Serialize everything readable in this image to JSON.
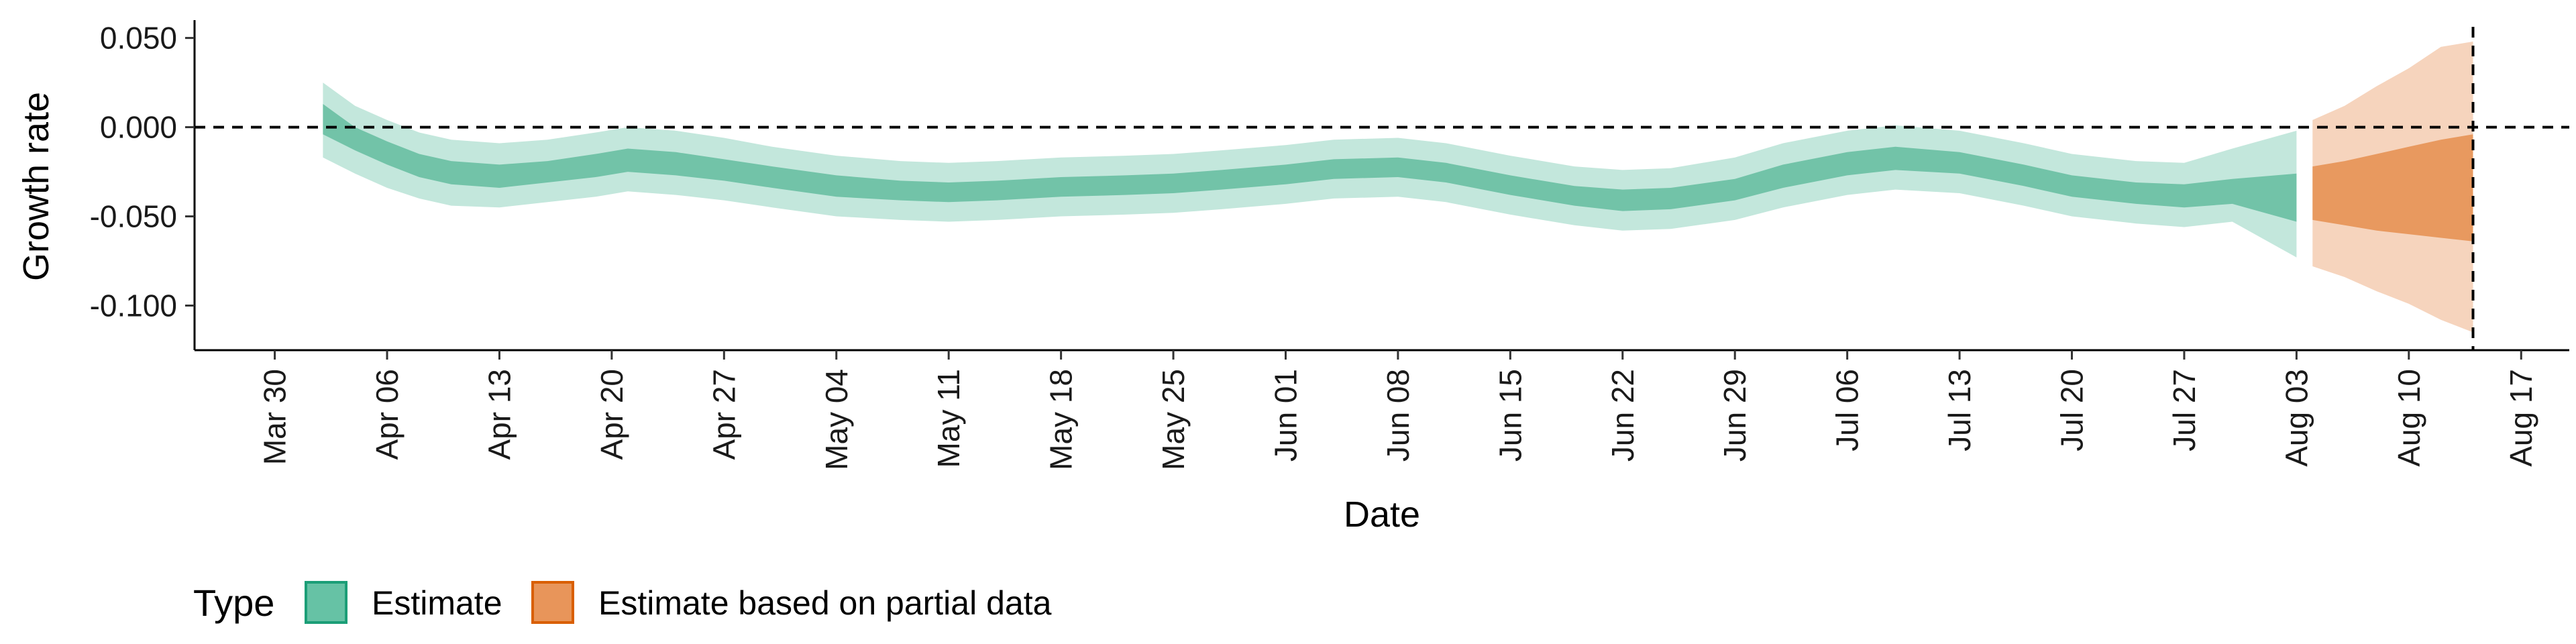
{
  "chart_data": {
    "type": "area",
    "xlabel": "Date",
    "ylabel": "Growth rate",
    "ylim": [
      -0.125,
      0.06
    ],
    "xlim": [
      "2020-03-25",
      "2020-08-20"
    ],
    "y_ticks": [
      {
        "value": 0.05,
        "label": "0.050"
      },
      {
        "value": 0.0,
        "label": "0.000"
      },
      {
        "value": -0.05,
        "label": "-0.050"
      },
      {
        "value": -0.1,
        "label": "-0.100"
      }
    ],
    "x_ticks": [
      {
        "date": "2020-03-30",
        "label": "Mar 30"
      },
      {
        "date": "2020-04-06",
        "label": "Apr 06"
      },
      {
        "date": "2020-04-13",
        "label": "Apr 13"
      },
      {
        "date": "2020-04-20",
        "label": "Apr 20"
      },
      {
        "date": "2020-04-27",
        "label": "Apr 27"
      },
      {
        "date": "2020-05-04",
        "label": "May 04"
      },
      {
        "date": "2020-05-11",
        "label": "May 11"
      },
      {
        "date": "2020-05-18",
        "label": "May 18"
      },
      {
        "date": "2020-05-25",
        "label": "May 25"
      },
      {
        "date": "2020-06-01",
        "label": "Jun 01"
      },
      {
        "date": "2020-06-08",
        "label": "Jun 08"
      },
      {
        "date": "2020-06-15",
        "label": "Jun 15"
      },
      {
        "date": "2020-06-22",
        "label": "Jun 22"
      },
      {
        "date": "2020-06-29",
        "label": "Jun 29"
      },
      {
        "date": "2020-07-06",
        "label": "Jul 06"
      },
      {
        "date": "2020-07-13",
        "label": "Jul 13"
      },
      {
        "date": "2020-07-20",
        "label": "Jul 20"
      },
      {
        "date": "2020-07-27",
        "label": "Jul 27"
      },
      {
        "date": "2020-08-03",
        "label": "Aug 03"
      },
      {
        "date": "2020-08-10",
        "label": "Aug 10"
      },
      {
        "date": "2020-08-17",
        "label": "Aug 17"
      }
    ],
    "hline": {
      "y": 0.0,
      "style": "dashed"
    },
    "vline": {
      "date": "2020-08-14",
      "style": "dashed"
    },
    "legend": {
      "title": "Type",
      "position": "bottom-left",
      "entries": [
        {
          "label": "Estimate",
          "fill": "#66c2a5",
          "border": "#1b9e77"
        },
        {
          "label": "Estimate based on partial data",
          "fill": "#e8955a",
          "border": "#d95f02"
        }
      ]
    },
    "series": [
      {
        "name": "Estimate",
        "color_outer": "#c3e7dc",
        "color_inner": "#72c3a8",
        "points": [
          {
            "date": "2020-04-02",
            "lo90": -0.017,
            "lo50": -0.004,
            "hi50": 0.013,
            "hi90": 0.025
          },
          {
            "date": "2020-04-04",
            "lo90": -0.026,
            "lo50": -0.013,
            "hi50": 0.0,
            "hi90": 0.012
          },
          {
            "date": "2020-04-06",
            "lo90": -0.034,
            "lo50": -0.021,
            "hi50": -0.008,
            "hi90": 0.004
          },
          {
            "date": "2020-04-08",
            "lo90": -0.04,
            "lo50": -0.028,
            "hi50": -0.015,
            "hi90": -0.003
          },
          {
            "date": "2020-04-10",
            "lo90": -0.044,
            "lo50": -0.032,
            "hi50": -0.019,
            "hi90": -0.007
          },
          {
            "date": "2020-04-13",
            "lo90": -0.045,
            "lo50": -0.034,
            "hi50": -0.021,
            "hi90": -0.009
          },
          {
            "date": "2020-04-16",
            "lo90": -0.042,
            "lo50": -0.031,
            "hi50": -0.019,
            "hi90": -0.007
          },
          {
            "date": "2020-04-19",
            "lo90": -0.039,
            "lo50": -0.028,
            "hi50": -0.015,
            "hi90": -0.003
          },
          {
            "date": "2020-04-21",
            "lo90": -0.036,
            "lo50": -0.025,
            "hi50": -0.012,
            "hi90": 0.0
          },
          {
            "date": "2020-04-24",
            "lo90": -0.038,
            "lo50": -0.027,
            "hi50": -0.014,
            "hi90": -0.002
          },
          {
            "date": "2020-04-27",
            "lo90": -0.041,
            "lo50": -0.03,
            "hi50": -0.018,
            "hi90": -0.006
          },
          {
            "date": "2020-04-30",
            "lo90": -0.045,
            "lo50": -0.034,
            "hi50": -0.022,
            "hi90": -0.011
          },
          {
            "date": "2020-05-04",
            "lo90": -0.05,
            "lo50": -0.039,
            "hi50": -0.027,
            "hi90": -0.016
          },
          {
            "date": "2020-05-08",
            "lo90": -0.052,
            "lo50": -0.041,
            "hi50": -0.03,
            "hi90": -0.019
          },
          {
            "date": "2020-05-11",
            "lo90": -0.053,
            "lo50": -0.042,
            "hi50": -0.031,
            "hi90": -0.02
          },
          {
            "date": "2020-05-14",
            "lo90": -0.052,
            "lo50": -0.041,
            "hi50": -0.03,
            "hi90": -0.019
          },
          {
            "date": "2020-05-18",
            "lo90": -0.05,
            "lo50": -0.039,
            "hi50": -0.028,
            "hi90": -0.017
          },
          {
            "date": "2020-05-22",
            "lo90": -0.049,
            "lo50": -0.038,
            "hi50": -0.027,
            "hi90": -0.016
          },
          {
            "date": "2020-05-25",
            "lo90": -0.048,
            "lo50": -0.037,
            "hi50": -0.026,
            "hi90": -0.015
          },
          {
            "date": "2020-05-28",
            "lo90": -0.046,
            "lo50": -0.035,
            "hi50": -0.024,
            "hi90": -0.013
          },
          {
            "date": "2020-06-01",
            "lo90": -0.043,
            "lo50": -0.032,
            "hi50": -0.021,
            "hi90": -0.01
          },
          {
            "date": "2020-06-04",
            "lo90": -0.04,
            "lo50": -0.029,
            "hi50": -0.018,
            "hi90": -0.007
          },
          {
            "date": "2020-06-08",
            "lo90": -0.039,
            "lo50": -0.028,
            "hi50": -0.017,
            "hi90": -0.006
          },
          {
            "date": "2020-06-11",
            "lo90": -0.042,
            "lo50": -0.031,
            "hi50": -0.02,
            "hi90": -0.009
          },
          {
            "date": "2020-06-15",
            "lo90": -0.049,
            "lo50": -0.038,
            "hi50": -0.027,
            "hi90": -0.016
          },
          {
            "date": "2020-06-19",
            "lo90": -0.055,
            "lo50": -0.044,
            "hi50": -0.033,
            "hi90": -0.022
          },
          {
            "date": "2020-06-22",
            "lo90": -0.058,
            "lo50": -0.047,
            "hi50": -0.035,
            "hi90": -0.024
          },
          {
            "date": "2020-06-25",
            "lo90": -0.057,
            "lo50": -0.046,
            "hi50": -0.034,
            "hi90": -0.023
          },
          {
            "date": "2020-06-29",
            "lo90": -0.052,
            "lo50": -0.041,
            "hi50": -0.029,
            "hi90": -0.017
          },
          {
            "date": "2020-07-02",
            "lo90": -0.045,
            "lo50": -0.034,
            "hi50": -0.021,
            "hi90": -0.009
          },
          {
            "date": "2020-07-06",
            "lo90": -0.038,
            "lo50": -0.027,
            "hi50": -0.014,
            "hi90": -0.002
          },
          {
            "date": "2020-07-09",
            "lo90": -0.035,
            "lo50": -0.024,
            "hi50": -0.011,
            "hi90": 0.001
          },
          {
            "date": "2020-07-13",
            "lo90": -0.037,
            "lo50": -0.026,
            "hi50": -0.014,
            "hi90": -0.002
          },
          {
            "date": "2020-07-17",
            "lo90": -0.044,
            "lo50": -0.033,
            "hi50": -0.021,
            "hi90": -0.009
          },
          {
            "date": "2020-07-20",
            "lo90": -0.05,
            "lo50": -0.039,
            "hi50": -0.027,
            "hi90": -0.015
          },
          {
            "date": "2020-07-24",
            "lo90": -0.054,
            "lo50": -0.043,
            "hi50": -0.031,
            "hi90": -0.019
          },
          {
            "date": "2020-07-27",
            "lo90": -0.056,
            "lo50": -0.045,
            "hi50": -0.032,
            "hi90": -0.02
          },
          {
            "date": "2020-07-30",
            "lo90": -0.053,
            "lo50": -0.043,
            "hi50": -0.029,
            "hi90": -0.012
          },
          {
            "date": "2020-08-03",
            "lo90": -0.073,
            "lo50": -0.053,
            "hi50": -0.026,
            "hi90": -0.002
          }
        ]
      },
      {
        "name": "Estimate based on partial data",
        "color_outer": "#f6d4bd",
        "color_inner": "#e8995f",
        "points": [
          {
            "date": "2020-08-04",
            "lo90": -0.078,
            "lo50": -0.052,
            "hi50": -0.022,
            "hi90": 0.004
          },
          {
            "date": "2020-08-06",
            "lo90": -0.084,
            "lo50": -0.055,
            "hi50": -0.019,
            "hi90": 0.012
          },
          {
            "date": "2020-08-08",
            "lo90": -0.092,
            "lo50": -0.058,
            "hi50": -0.015,
            "hi90": 0.023
          },
          {
            "date": "2020-08-10",
            "lo90": -0.099,
            "lo50": -0.06,
            "hi50": -0.011,
            "hi90": 0.033
          },
          {
            "date": "2020-08-12",
            "lo90": -0.108,
            "lo50": -0.062,
            "hi50": -0.007,
            "hi90": 0.045
          },
          {
            "date": "2020-08-14",
            "lo90": -0.115,
            "lo50": -0.064,
            "hi50": -0.004,
            "hi90": 0.048
          }
        ]
      }
    ]
  }
}
